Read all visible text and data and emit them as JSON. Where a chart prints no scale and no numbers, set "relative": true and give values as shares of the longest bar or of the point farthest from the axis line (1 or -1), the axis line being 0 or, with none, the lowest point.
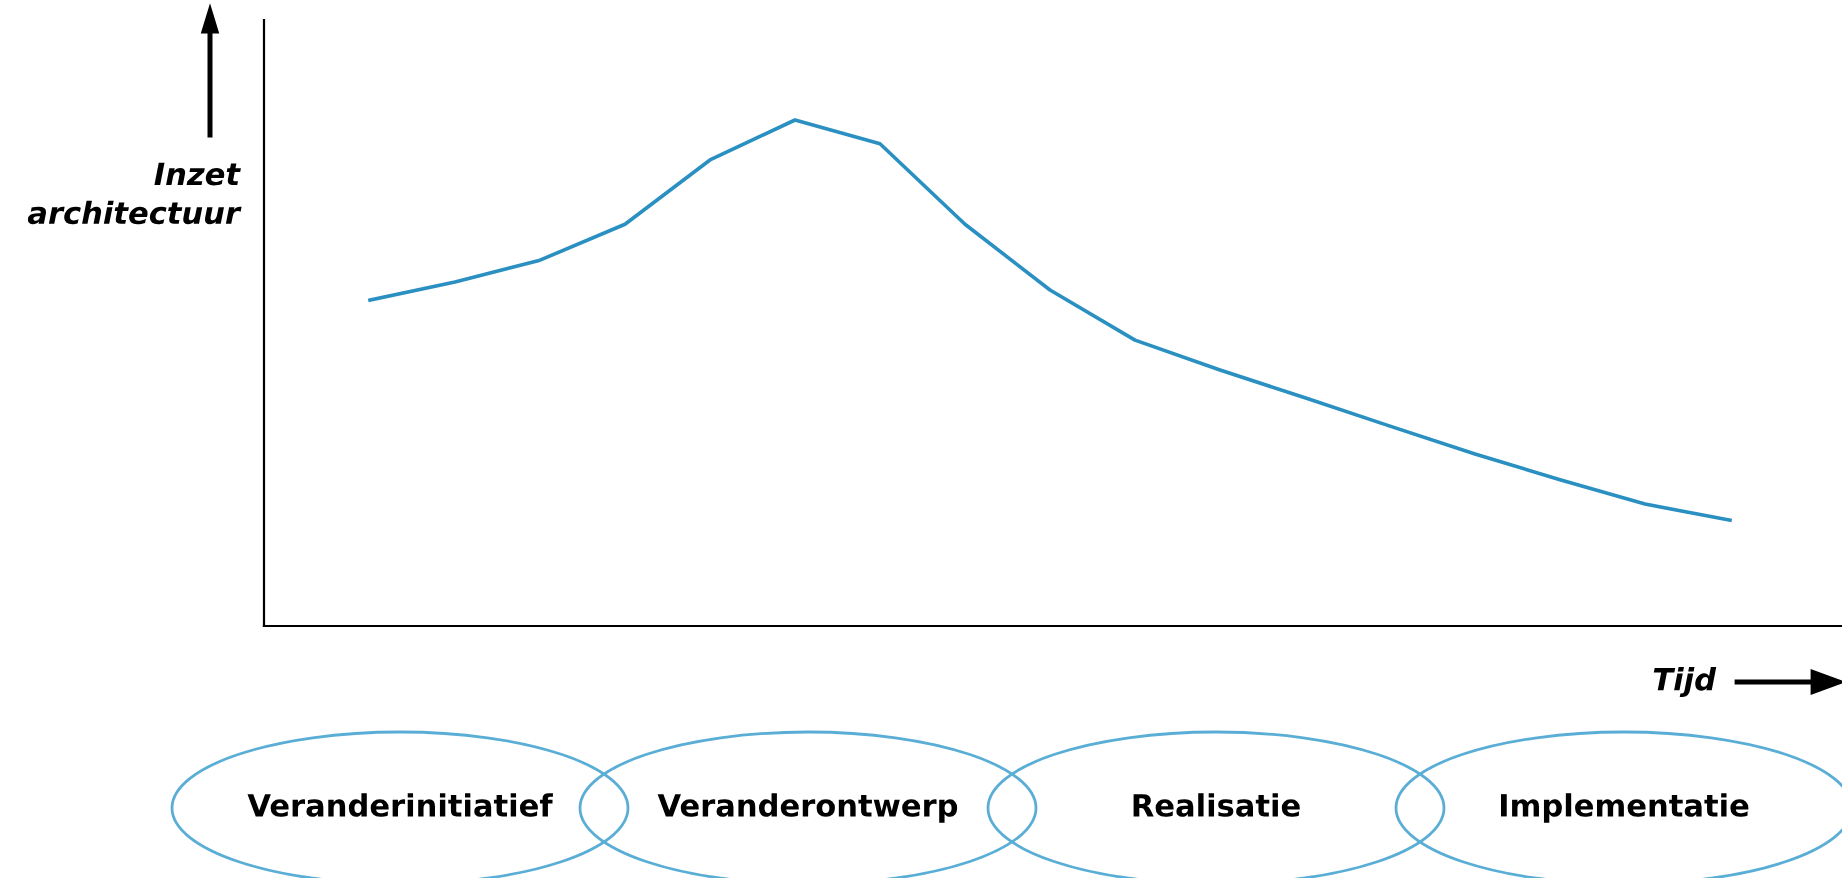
{
  "chart_data": {
    "type": "line",
    "relative": true,
    "xlabel": "Tijd",
    "ylabel": "Inzet architectuur",
    "categories": [
      null,
      null,
      null,
      null,
      null,
      null,
      null,
      null,
      null,
      null,
      null,
      null,
      null,
      null,
      null,
      null,
      null
    ],
    "series": [
      {
        "color": "#2a8fc1",
        "values": [
          0.644,
          0.68,
          0.723,
          0.794,
          0.921,
          1,
          0.953,
          0.794,
          0.664,
          0.565,
          0.506,
          0.451,
          0.395,
          0.34,
          0.289,
          0.241,
          0.209
        ]
      }
    ],
    "annotations": [
      "Veranderinitiatief",
      "Veranderontwerp",
      "Realisatie",
      "Implementatie"
    ],
    "grid": false,
    "legend": false,
    "marker": "none",
    "line_style": "solid"
  }
}
